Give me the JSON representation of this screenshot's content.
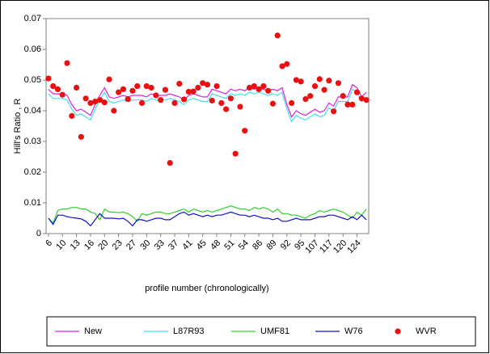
{
  "chart_data": {
    "type": "line",
    "x_label": "profile number (chronologically)",
    "y_label": "Hill's Ratio , R",
    "categories": [
      "6",
      null,
      null,
      "10",
      null,
      null,
      "13",
      null,
      null,
      "16",
      null,
      null,
      "20",
      null,
      null,
      "23",
      null,
      null,
      "27",
      null,
      null,
      "30",
      null,
      null,
      "33",
      null,
      null,
      "37",
      null,
      null,
      "41",
      null,
      null,
      "45",
      null,
      null,
      "48",
      null,
      null,
      "51",
      null,
      null,
      "54",
      null,
      null,
      "86",
      null,
      null,
      "89",
      null,
      null,
      "92",
      null,
      null,
      "95",
      null,
      null,
      "107",
      null,
      null,
      "117",
      null,
      null,
      "120",
      null,
      null,
      "124",
      null,
      null
    ],
    "ylim": [
      0,
      0.07
    ],
    "yticks": [
      0,
      0.01,
      0.02,
      0.03,
      0.04,
      0.05,
      0.06,
      0.07
    ],
    "grid": false,
    "legend": "bottom",
    "series": [
      {
        "name": "New",
        "color": "#e020e0",
        "mode": "line",
        "values": [
          0.047,
          0.0455,
          0.0455,
          0.0455,
          0.045,
          0.042,
          0.04,
          0.0405,
          0.0395,
          0.0385,
          0.042,
          0.045,
          0.0475,
          0.0445,
          0.044,
          0.0445,
          0.045,
          0.0445,
          0.045,
          0.045,
          0.045,
          0.0445,
          0.0455,
          0.045,
          0.045,
          0.045,
          0.0455,
          0.045,
          0.0445,
          0.0435,
          0.045,
          0.0455,
          0.045,
          0.0445,
          0.0445,
          0.047,
          0.0465,
          0.046,
          0.0455,
          0.047,
          0.0465,
          0.047,
          0.0465,
          0.0475,
          0.047,
          0.0475,
          0.047,
          0.0465,
          0.047,
          0.0465,
          0.0475,
          0.042,
          0.038,
          0.04,
          0.039,
          0.0385,
          0.0395,
          0.0405,
          0.0395,
          0.04,
          0.0425,
          0.0415,
          0.0445,
          0.0445,
          0.0445,
          0.0485,
          0.0475,
          0.0445,
          0.046
        ]
      },
      {
        "name": "L87R93",
        "color": "#40e0e8",
        "mode": "line",
        "values": [
          0.0455,
          0.044,
          0.044,
          0.044,
          0.0435,
          0.0405,
          0.0385,
          0.039,
          0.038,
          0.037,
          0.0405,
          0.0435,
          0.046,
          0.043,
          0.0425,
          0.043,
          0.0435,
          0.043,
          0.0435,
          0.0435,
          0.0435,
          0.043,
          0.044,
          0.0435,
          0.0435,
          0.0435,
          0.044,
          0.0435,
          0.043,
          0.042,
          0.0435,
          0.044,
          0.0435,
          0.043,
          0.043,
          0.0455,
          0.045,
          0.0445,
          0.044,
          0.0455,
          0.045,
          0.0455,
          0.045,
          0.046,
          0.0455,
          0.046,
          0.0455,
          0.045,
          0.0455,
          0.045,
          0.046,
          0.0405,
          0.0365,
          0.0385,
          0.0375,
          0.037,
          0.038,
          0.039,
          0.038,
          0.0385,
          0.041,
          0.04,
          0.043,
          0.043,
          0.043,
          0.047,
          0.046,
          0.043,
          0.0445
        ]
      },
      {
        "name": "UMF81",
        "color": "#30d030",
        "mode": "line",
        "values": [
          0.005,
          0.0035,
          0.0075,
          0.008,
          0.008,
          0.0085,
          0.0085,
          0.008,
          0.008,
          0.007,
          0.0065,
          0.0045,
          0.008,
          0.007,
          0.007,
          0.0068,
          0.007,
          0.0065,
          0.0055,
          0.004,
          0.0065,
          0.006,
          0.0065,
          0.007,
          0.007,
          0.0065,
          0.0065,
          0.007,
          0.0075,
          0.008,
          0.007,
          0.008,
          0.0075,
          0.007,
          0.0075,
          0.007,
          0.0075,
          0.008,
          0.0085,
          0.009,
          0.0085,
          0.008,
          0.008,
          0.0075,
          0.0085,
          0.008,
          0.0085,
          0.008,
          0.007,
          0.008,
          0.0065,
          0.0065,
          0.006,
          0.006,
          0.0055,
          0.005,
          0.006,
          0.0065,
          0.0075,
          0.007,
          0.0075,
          0.008,
          0.0075,
          0.007,
          0.006,
          0.005,
          0.007,
          0.006,
          0.008
        ]
      },
      {
        "name": "W76",
        "color": "#1010c8",
        "mode": "line",
        "values": [
          0.005,
          0.003,
          0.006,
          0.006,
          0.0055,
          0.0052,
          0.005,
          0.0048,
          0.004,
          0.0025,
          0.0045,
          0.0065,
          0.005,
          0.005,
          0.005,
          0.0048,
          0.005,
          0.004,
          0.0025,
          0.0045,
          0.0045,
          0.004,
          0.0045,
          0.005,
          0.005,
          0.0045,
          0.0045,
          0.0055,
          0.0065,
          0.007,
          0.006,
          0.0065,
          0.006,
          0.0055,
          0.006,
          0.0055,
          0.006,
          0.006,
          0.0065,
          0.007,
          0.0065,
          0.006,
          0.006,
          0.0055,
          0.006,
          0.0055,
          0.005,
          0.005,
          0.0045,
          0.005,
          0.004,
          0.004,
          0.0045,
          0.005,
          0.0045,
          0.0045,
          0.0045,
          0.005,
          0.0055,
          0.0055,
          0.006,
          0.006,
          0.0055,
          0.005,
          0.0045,
          0.0055,
          0.0045,
          0.006,
          0.0045
        ]
      },
      {
        "name": "WVR",
        "color": "#e81010",
        "mode": "markers",
        "values": [
          0.0505,
          0.048,
          0.047,
          0.0452,
          0.0555,
          0.0383,
          0.0475,
          0.0315,
          0.044,
          0.0425,
          0.043,
          0.0435,
          0.0427,
          0.0502,
          0.04,
          0.046,
          0.047,
          0.0438,
          0.0465,
          0.048,
          0.0425,
          0.048,
          0.0475,
          0.045,
          0.0435,
          0.0468,
          0.023,
          0.0425,
          0.0488,
          0.0437,
          0.0462,
          0.0463,
          0.0475,
          0.049,
          0.0485,
          0.0433,
          0.048,
          0.0425,
          0.0405,
          0.044,
          0.026,
          0.0413,
          0.0335,
          0.0475,
          0.048,
          0.047,
          0.048,
          0.0465,
          0.0423,
          0.0645,
          0.0545,
          0.0552,
          0.0425,
          0.05,
          0.0495,
          0.0438,
          0.0448,
          0.048,
          0.0503,
          0.0468,
          0.0498,
          0.0398,
          0.049,
          0.0448,
          0.042,
          0.042,
          0.046,
          0.044,
          0.0435
        ]
      }
    ]
  }
}
